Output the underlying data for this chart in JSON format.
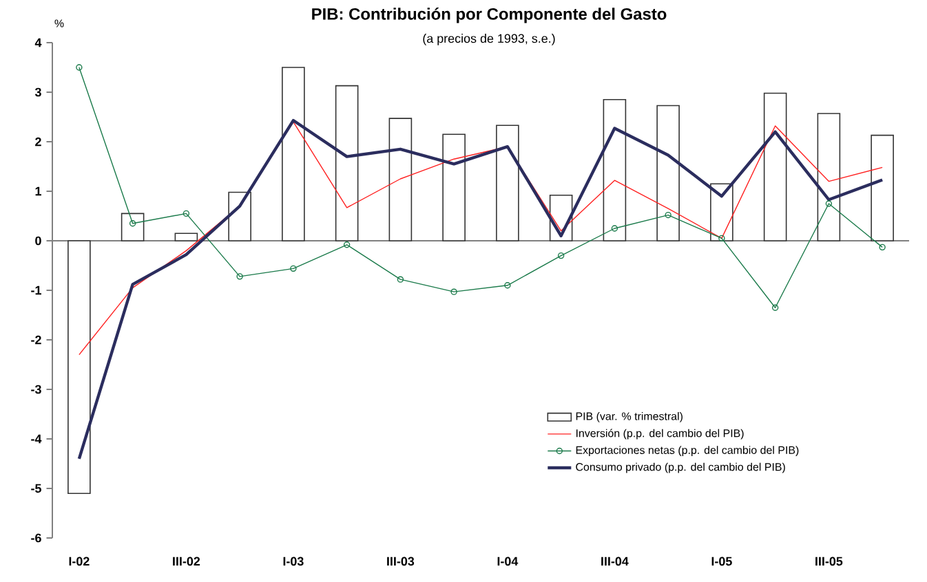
{
  "chart_data": {
    "type": "bar",
    "title": "PIB: Contribución por Componente del Gasto",
    "subtitle": "(a precios de 1993, s.e.)",
    "ylabel": "%",
    "categories": [
      "I-02",
      null,
      "III-02",
      null,
      "I-03",
      null,
      "III-03",
      null,
      "I-04",
      null,
      "III-04",
      null,
      "I-05",
      null,
      "III-05",
      null
    ],
    "ylim": [
      -6,
      4
    ],
    "yticks": [
      -6,
      -5,
      -4,
      -3,
      -2,
      -1,
      0,
      1,
      2,
      3,
      4
    ],
    "legend": "bottom right",
    "series": [
      {
        "name": "PIB (var. % trimestral)",
        "color": "#ffffff",
        "values": [
          -5.1,
          0.55,
          0.15,
          0.98,
          3.5,
          3.13,
          2.47,
          2.15,
          2.33,
          0.92,
          2.85,
          2.73,
          1.15,
          2.98,
          2.57,
          2.13
        ]
      },
      {
        "name": "Inversión (p.p. del cambio del PIB)",
        "type": "line",
        "color": "#ff2020",
        "marker": "none",
        "values": [
          -2.3,
          -0.95,
          -0.2,
          0.7,
          2.4,
          0.67,
          1.25,
          1.65,
          1.9,
          0.2,
          1.22,
          0.65,
          0.05,
          2.32,
          1.2,
          1.48
        ]
      },
      {
        "name": "Exportaciones netas  (p.p. del cambio del PIB)",
        "type": "line",
        "color": "#1a7a4a",
        "marker": "circle",
        "values": [
          3.5,
          0.35,
          0.55,
          -0.72,
          -0.56,
          -0.08,
          -0.78,
          -1.03,
          -0.9,
          -0.3,
          0.25,
          0.52,
          0.05,
          -1.35,
          0.75,
          -0.13
        ]
      },
      {
        "name": "Consumo privado  (p.p. del cambio del PIB)",
        "type": "line",
        "color": "#2b2d5e",
        "marker": "none",
        "values": [
          -4.4,
          -0.88,
          -0.28,
          0.7,
          2.43,
          1.7,
          1.85,
          1.55,
          1.9,
          0.1,
          2.27,
          1.73,
          0.9,
          2.2,
          0.83,
          1.23
        ]
      }
    ]
  }
}
